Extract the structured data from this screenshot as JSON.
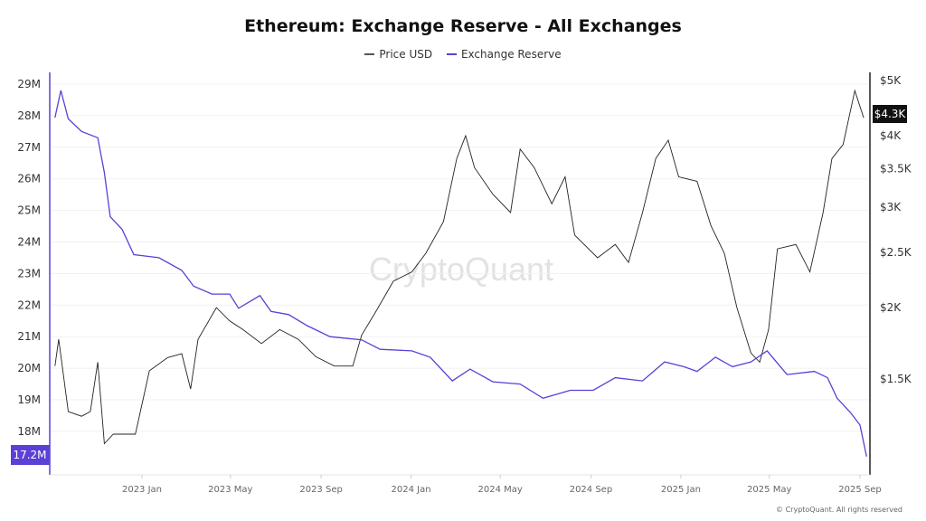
{
  "chart_data": {
    "type": "line",
    "title": "Ethereum: Exchange Reserve - All Exchanges",
    "legend": {
      "placement": "top-center"
    },
    "grid": {
      "horizontal": true,
      "vertical": false
    },
    "x_ticks": [
      "2023 Jan",
      "2023 May",
      "2023 Sep",
      "2024 Jan",
      "2024 May",
      "2024 Sep",
      "2025 Jan",
      "2025 May",
      "2025 Sep"
    ],
    "x_tick_dates": [
      "2023-01-01",
      "2023-05-01",
      "2023-09-01",
      "2024-01-01",
      "2024-05-01",
      "2024-09-01",
      "2025-01-01",
      "2025-05-01",
      "2025-09-01"
    ],
    "y_left": {
      "scale": "linear",
      "range": [
        17000000,
        29000000
      ],
      "ticks": [
        18000000,
        19000000,
        20000000,
        21000000,
        22000000,
        23000000,
        24000000,
        25000000,
        26000000,
        27000000,
        28000000,
        29000000
      ],
      "tick_labels": [
        "18M",
        "19M",
        "20M",
        "21M",
        "22M",
        "23M",
        "24M",
        "25M",
        "26M",
        "27M",
        "28M",
        "29M"
      ],
      "current_label": "17.2M"
    },
    "y_right": {
      "scale": "log",
      "range": [
        1050,
        5000
      ],
      "ticks": [
        1500,
        2000,
        2500,
        3000,
        3500,
        4000,
        5000
      ],
      "tick_labels": [
        "$1.5K",
        "$2K",
        "$2.5K",
        "$3K",
        "$3.5K",
        "$4K",
        "$5K"
      ],
      "current_label": "$4.3K"
    },
    "series": [
      {
        "name": "Price USD",
        "axis": "right",
        "color": "#222222",
        "points": [
          [
            "2022-09-05",
            1580
          ],
          [
            "2022-09-10",
            1760
          ],
          [
            "2022-09-23",
            1315
          ],
          [
            "2022-10-11",
            1290
          ],
          [
            "2022-10-23",
            1315
          ],
          [
            "2022-11-02",
            1605
          ],
          [
            "2022-11-11",
            1155
          ],
          [
            "2022-11-23",
            1200
          ],
          [
            "2022-12-23",
            1200
          ],
          [
            "2023-01-11",
            1550
          ],
          [
            "2023-02-05",
            1635
          ],
          [
            "2023-02-24",
            1660
          ],
          [
            "2023-03-08",
            1440
          ],
          [
            "2023-03-18",
            1760
          ],
          [
            "2023-04-12",
            2000
          ],
          [
            "2023-04-30",
            1895
          ],
          [
            "2023-05-18",
            1830
          ],
          [
            "2023-06-12",
            1730
          ],
          [
            "2023-07-07",
            1830
          ],
          [
            "2023-08-01",
            1760
          ],
          [
            "2023-08-25",
            1640
          ],
          [
            "2023-09-19",
            1580
          ],
          [
            "2023-10-14",
            1580
          ],
          [
            "2023-10-26",
            1790
          ],
          [
            "2023-11-14",
            1965
          ],
          [
            "2023-12-08",
            2225
          ],
          [
            "2024-01-02",
            2310
          ],
          [
            "2024-01-21",
            2490
          ],
          [
            "2024-02-14",
            2830
          ],
          [
            "2024-03-03",
            3650
          ],
          [
            "2024-03-15",
            4000
          ],
          [
            "2024-03-27",
            3520
          ],
          [
            "2024-04-21",
            3160
          ],
          [
            "2024-05-15",
            2935
          ],
          [
            "2024-05-28",
            3790
          ],
          [
            "2024-06-16",
            3520
          ],
          [
            "2024-07-10",
            3040
          ],
          [
            "2024-07-28",
            3390
          ],
          [
            "2024-08-10",
            2680
          ],
          [
            "2024-09-10",
            2445
          ],
          [
            "2024-10-04",
            2580
          ],
          [
            "2024-10-22",
            2400
          ],
          [
            "2024-11-10",
            2935
          ],
          [
            "2024-11-28",
            3650
          ],
          [
            "2024-12-15",
            3930
          ],
          [
            "2024-12-29",
            3390
          ],
          [
            "2025-01-23",
            3330
          ],
          [
            "2025-02-11",
            2780
          ],
          [
            "2025-03-01",
            2490
          ],
          [
            "2025-03-18",
            2000
          ],
          [
            "2025-04-06",
            1665
          ],
          [
            "2025-04-18",
            1605
          ],
          [
            "2025-04-30",
            1830
          ],
          [
            "2025-05-12",
            2535
          ],
          [
            "2025-06-06",
            2580
          ],
          [
            "2025-06-25",
            2310
          ],
          [
            "2025-07-13",
            2935
          ],
          [
            "2025-07-25",
            3650
          ],
          [
            "2025-08-09",
            3860
          ],
          [
            "2025-08-25",
            4800
          ],
          [
            "2025-09-06",
            4300
          ]
        ]
      },
      {
        "name": "Exchange Reserve",
        "axis": "left",
        "color": "#5b3fd6",
        "points": [
          [
            "2022-09-05",
            27940000
          ],
          [
            "2022-09-13",
            28800000
          ],
          [
            "2022-09-23",
            27900000
          ],
          [
            "2022-10-11",
            27500000
          ],
          [
            "2022-11-02",
            27300000
          ],
          [
            "2022-11-11",
            26200000
          ],
          [
            "2022-11-19",
            24800000
          ],
          [
            "2022-12-05",
            24400000
          ],
          [
            "2022-12-21",
            23600000
          ],
          [
            "2023-01-24",
            23500000
          ],
          [
            "2023-02-24",
            23100000
          ],
          [
            "2023-03-12",
            22600000
          ],
          [
            "2023-04-06",
            22350000
          ],
          [
            "2023-04-30",
            22350000
          ],
          [
            "2023-05-12",
            21900000
          ],
          [
            "2023-06-10",
            22300000
          ],
          [
            "2023-06-25",
            21800000
          ],
          [
            "2023-07-19",
            21700000
          ],
          [
            "2023-08-13",
            21350000
          ],
          [
            "2023-09-13",
            21000000
          ],
          [
            "2023-10-26",
            20900000
          ],
          [
            "2023-11-20",
            20600000
          ],
          [
            "2024-01-02",
            20550000
          ],
          [
            "2024-01-27",
            20350000
          ],
          [
            "2024-02-26",
            19600000
          ],
          [
            "2024-03-21",
            19970000
          ],
          [
            "2024-04-21",
            19570000
          ],
          [
            "2024-05-28",
            19500000
          ],
          [
            "2024-06-28",
            19050000
          ],
          [
            "2024-08-04",
            19300000
          ],
          [
            "2024-09-04",
            19300000
          ],
          [
            "2024-10-04",
            19700000
          ],
          [
            "2024-11-10",
            19600000
          ],
          [
            "2024-12-10",
            20200000
          ],
          [
            "2025-01-05",
            20050000
          ],
          [
            "2025-01-23",
            19900000
          ],
          [
            "2025-02-17",
            20350000
          ],
          [
            "2025-03-12",
            20050000
          ],
          [
            "2025-04-06",
            20200000
          ],
          [
            "2025-04-28",
            20550000
          ],
          [
            "2025-05-25",
            19800000
          ],
          [
            "2025-07-01",
            19900000
          ],
          [
            "2025-07-19",
            19700000
          ],
          [
            "2025-08-01",
            19050000
          ],
          [
            "2025-08-19",
            18600000
          ],
          [
            "2025-09-01",
            18200000
          ],
          [
            "2025-09-10",
            17200000
          ]
        ]
      }
    ],
    "watermark": "CryptoQuant"
  },
  "copyright": "© CryptoQuant. All rights reserved"
}
